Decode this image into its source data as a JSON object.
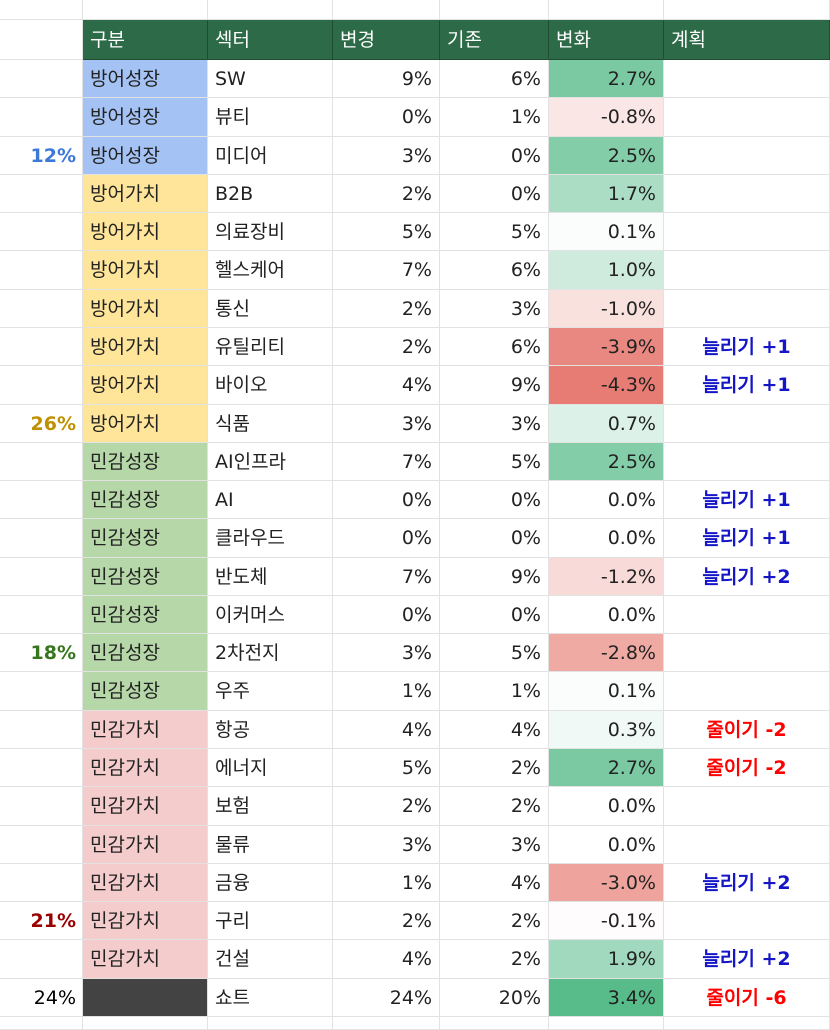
{
  "table": {
    "header": [
      "구분",
      "섹터",
      "변경",
      "기존",
      "변화",
      "계획"
    ],
    "rows": [
      {
        "side": null,
        "group": "방어성장",
        "group_color": "#a4c2f4",
        "sector": "SW",
        "new": "9%",
        "old": "6%",
        "change": "2.7%",
        "plan": null
      },
      {
        "side": null,
        "group": "방어성장",
        "group_color": "#a4c2f4",
        "sector": "뷰티",
        "new": "0%",
        "old": "1%",
        "change": "-0.8%",
        "plan": null
      },
      {
        "side": "12%",
        "side_color": "#3c78d8",
        "group": "방어성장",
        "group_color": "#a4c2f4",
        "sector": "미디어",
        "new": "3%",
        "old": "0%",
        "change": "2.5%",
        "plan": null
      },
      {
        "side": null,
        "group": "방어가치",
        "group_color": "#ffe599",
        "sector": "B2B",
        "new": "2%",
        "old": "0%",
        "change": "1.7%",
        "plan": null
      },
      {
        "side": null,
        "group": "방어가치",
        "group_color": "#ffe599",
        "sector": "의료장비",
        "new": "5%",
        "old": "5%",
        "change": "0.1%",
        "plan": null
      },
      {
        "side": null,
        "group": "방어가치",
        "group_color": "#ffe599",
        "sector": "헬스케어",
        "new": "7%",
        "old": "6%",
        "change": "1.0%",
        "plan": null
      },
      {
        "side": null,
        "group": "방어가치",
        "group_color": "#ffe599",
        "sector": "통신",
        "new": "2%",
        "old": "3%",
        "change": "-1.0%",
        "plan": null
      },
      {
        "side": null,
        "group": "방어가치",
        "group_color": "#ffe599",
        "sector": "유틸리티",
        "new": "2%",
        "old": "6%",
        "change": "-3.9%",
        "plan": "늘리기 +1",
        "plan_color": "#1515c8"
      },
      {
        "side": null,
        "group": "방어가치",
        "group_color": "#ffe599",
        "sector": "바이오",
        "new": "4%",
        "old": "9%",
        "change": "-4.3%",
        "plan": "늘리기 +1",
        "plan_color": "#1515c8"
      },
      {
        "side": "26%",
        "side_color": "#bf9000",
        "group": "방어가치",
        "group_color": "#ffe599",
        "sector": "식품",
        "new": "3%",
        "old": "3%",
        "change": "0.7%",
        "plan": null
      },
      {
        "side": null,
        "group": "민감성장",
        "group_color": "#b6d7a8",
        "sector": "AI인프라",
        "new": "7%",
        "old": "5%",
        "change": "2.5%",
        "plan": null
      },
      {
        "side": null,
        "group": "민감성장",
        "group_color": "#b6d7a8",
        "sector": "AI",
        "new": "0%",
        "old": "0%",
        "change": "0.0%",
        "plan": "늘리기 +1",
        "plan_color": "#1515c8"
      },
      {
        "side": null,
        "group": "민감성장",
        "group_color": "#b6d7a8",
        "sector": "클라우드",
        "new": "0%",
        "old": "0%",
        "change": "0.0%",
        "plan": "늘리기 +1",
        "plan_color": "#1515c8"
      },
      {
        "side": null,
        "group": "민감성장",
        "group_color": "#b6d7a8",
        "sector": "반도체",
        "new": "7%",
        "old": "9%",
        "change": "-1.2%",
        "plan": "늘리기 +2",
        "plan_color": "#1515c8"
      },
      {
        "side": null,
        "group": "민감성장",
        "group_color": "#b6d7a8",
        "sector": "이커머스",
        "new": "0%",
        "old": "0%",
        "change": "0.0%",
        "plan": null
      },
      {
        "side": "18%",
        "side_color": "#38761d",
        "group": "민감성장",
        "group_color": "#b6d7a8",
        "sector": "2차전지",
        "new": "3%",
        "old": "5%",
        "change": "-2.8%",
        "plan": null
      },
      {
        "side": null,
        "group": "민감성장",
        "group_color": "#b6d7a8",
        "sector": "우주",
        "new": "1%",
        "old": "1%",
        "change": "0.1%",
        "plan": null
      },
      {
        "side": null,
        "group": "민감가치",
        "group_color": "#f4cccc",
        "sector": "항공",
        "new": "4%",
        "old": "4%",
        "change": "0.3%",
        "plan": "줄이기 -2",
        "plan_color": "#ff0000"
      },
      {
        "side": null,
        "group": "민감가치",
        "group_color": "#f4cccc",
        "sector": "에너지",
        "new": "5%",
        "old": "2%",
        "change": "2.7%",
        "plan": "줄이기 -2",
        "plan_color": "#ff0000"
      },
      {
        "side": null,
        "group": "민감가치",
        "group_color": "#f4cccc",
        "sector": "보험",
        "new": "2%",
        "old": "2%",
        "change": "0.0%",
        "plan": null
      },
      {
        "side": null,
        "group": "민감가치",
        "group_color": "#f4cccc",
        "sector": "물류",
        "new": "3%",
        "old": "3%",
        "change": "0.0%",
        "plan": null
      },
      {
        "side": null,
        "group": "민감가치",
        "group_color": "#f4cccc",
        "sector": "금융",
        "new": "1%",
        "old": "4%",
        "change": "-3.0%",
        "plan": "늘리기 +2",
        "plan_color": "#1515c8"
      },
      {
        "side": "21%",
        "side_color": "#990000",
        "group": "민감가치",
        "group_color": "#f4cccc",
        "sector": "구리",
        "new": "2%",
        "old": "2%",
        "change": "-0.1%",
        "plan": null
      },
      {
        "side": null,
        "group": "민감가치",
        "group_color": "#f4cccc",
        "sector": "건설",
        "new": "4%",
        "old": "2%",
        "change": "1.9%",
        "plan": "늘리기 +2",
        "plan_color": "#1515c8"
      },
      {
        "side": "24%",
        "side_color": "#000000",
        "group": null,
        "group_color": "#434343",
        "sector": "쇼트",
        "new": "24%",
        "old": "20%",
        "change": "3.4%",
        "plan": "줄이기 -6",
        "plan_color": "#ff0000"
      }
    ]
  }
}
